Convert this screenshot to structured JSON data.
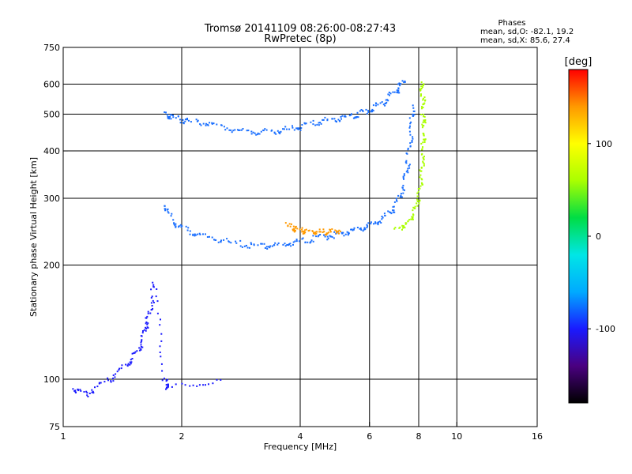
{
  "chart_data": {
    "type": "scatter",
    "title": "Tromsø 20141109 08:26:00-08:27:43",
    "subtitle": "RwPretec (8p)",
    "phase_header": "Phases",
    "phase_stats": [
      "mean, sd,O: -82.1, 19.2",
      "mean, sd,X:  85.6, 27.4"
    ],
    "xlabel": "Frequency [MHz]",
    "ylabel": "Stationary phase Virtual Height [km]",
    "xscale": "log",
    "yscale": "log",
    "xlim": [
      1,
      16
    ],
    "ylim": [
      75,
      750
    ],
    "x_ticks": [
      {
        "value": 1,
        "label": "1"
      },
      {
        "value": 2,
        "label": "2"
      },
      {
        "value": 4,
        "label": "4"
      },
      {
        "value": 6,
        "label": "6"
      },
      {
        "value": 8,
        "label": "8"
      },
      {
        "value": 10,
        "label": "10"
      },
      {
        "value": 16,
        "label": "16"
      }
    ],
    "x_grid": [
      2,
      4,
      6,
      8,
      10
    ],
    "y_ticks": [
      {
        "value": 75,
        "label": "75"
      },
      {
        "value": 100,
        "label": "100"
      },
      {
        "value": 200,
        "label": "200"
      },
      {
        "value": 300,
        "label": "300"
      },
      {
        "value": 400,
        "label": "400"
      },
      {
        "value": 500,
        "label": "500"
      },
      {
        "value": 600,
        "label": "600"
      },
      {
        "value": 750,
        "label": "750"
      }
    ],
    "y_grid": [
      100,
      200,
      300,
      400,
      500,
      600
    ],
    "grid": true,
    "colorbar": {
      "label": "[deg]",
      "range": [
        -180,
        180
      ],
      "ticks": [
        {
          "value": 100,
          "label": "100"
        },
        {
          "value": 0,
          "label": "0"
        },
        {
          "value": -100,
          "label": "-100"
        }
      ],
      "colors": [
        "#000000",
        "#4a0080",
        "#1a1aff",
        "#00aaff",
        "#00e6e6",
        "#00dd44",
        "#aaff00",
        "#ffff00",
        "#ff9900",
        "#ff0000"
      ]
    },
    "traces": [
      {
        "description": "O-mode F-layer trace (upper, ~450-500 km)",
        "phase_color": "#1a6fff",
        "points": [
          [
            1.8,
            500
          ],
          [
            1.9,
            490
          ],
          [
            2.1,
            480
          ],
          [
            2.4,
            470
          ],
          [
            2.8,
            455
          ],
          [
            3.2,
            450
          ],
          [
            3.6,
            455
          ],
          [
            4.0,
            465
          ],
          [
            4.5,
            480
          ],
          [
            5.0,
            490
          ],
          [
            5.5,
            500
          ],
          [
            6.0,
            515
          ],
          [
            6.5,
            540
          ],
          [
            7.0,
            580
          ],
          [
            7.3,
            610
          ]
        ]
      },
      {
        "description": "O-mode F-layer trace (lower, ~230-260 km)",
        "phase_color": "#1a6fff",
        "points": [
          [
            1.8,
            290
          ],
          [
            1.9,
            260
          ],
          [
            2.1,
            245
          ],
          [
            2.4,
            235
          ],
          [
            2.8,
            228
          ],
          [
            3.2,
            225
          ],
          [
            3.6,
            227
          ],
          [
            4.0,
            232
          ],
          [
            4.5,
            238
          ],
          [
            5.0,
            242
          ],
          [
            5.5,
            248
          ],
          [
            6.0,
            255
          ],
          [
            6.5,
            268
          ],
          [
            7.0,
            290
          ],
          [
            7.3,
            330
          ],
          [
            7.5,
            380
          ],
          [
            7.6,
            450
          ],
          [
            7.7,
            530
          ]
        ]
      },
      {
        "description": "X-mode near-vertical branch",
        "phase_color": "#aaff00",
        "points": [
          [
            7.0,
            250
          ],
          [
            7.5,
            260
          ],
          [
            7.8,
            280
          ],
          [
            8.0,
            310
          ],
          [
            8.1,
            350
          ],
          [
            8.15,
            400
          ],
          [
            8.2,
            450
          ],
          [
            8.2,
            500
          ],
          [
            8.15,
            560
          ],
          [
            8.1,
            610
          ]
        ]
      },
      {
        "description": "Low-frequency echoes (~100-180 km)",
        "phase_color": "#1a1aff",
        "points": [
          [
            1.05,
            95
          ],
          [
            1.15,
            92
          ],
          [
            1.3,
            100
          ],
          [
            1.45,
            110
          ],
          [
            1.55,
            120
          ],
          [
            1.6,
            135
          ],
          [
            1.65,
            150
          ],
          [
            1.7,
            180
          ],
          [
            1.8,
            100
          ],
          [
            1.85,
            95
          ],
          [
            2.5,
            100
          ]
        ]
      },
      {
        "description": "Orange/red echoes near 4-5 MHz",
        "phase_color": "#ff9900",
        "points": [
          [
            3.7,
            255
          ],
          [
            3.9,
            250
          ],
          [
            4.1,
            245
          ],
          [
            4.4,
            245
          ],
          [
            4.7,
            245
          ],
          [
            5.0,
            248
          ]
        ]
      }
    ]
  }
}
